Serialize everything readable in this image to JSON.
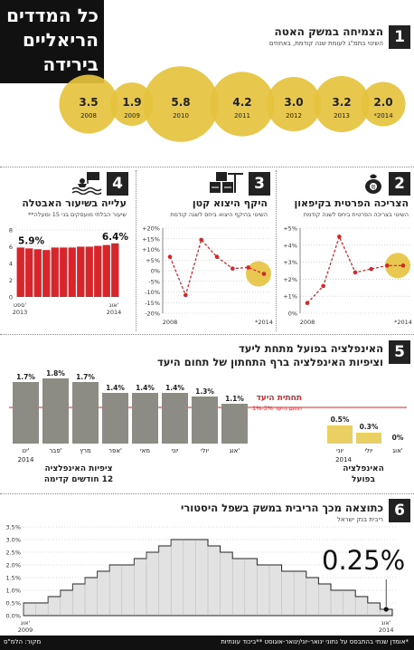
{
  "header": {
    "title_lines": [
      "כל המדדים",
      "הריאליים",
      "בירידה"
    ]
  },
  "colors": {
    "gold": "#e5c23d",
    "gold_light": "#ead062",
    "red": "#d7262b",
    "gray": "#8c8c84",
    "dark": "#222222"
  },
  "section1": {
    "number": "1",
    "title": "הצמיחה במשק האטה",
    "subtitle": "השינוי בתמ\"ג לעומת שנה קודמת, באחוזים"
  },
  "section2": {
    "number": "2",
    "icon": "money-bag-icon",
    "title": "הצריכה הפרטית בקיפאון",
    "subtitle": "השינוי בצריכה הפרטית ביחס לשנה קודמת"
  },
  "section3": {
    "number": "3",
    "icon": "crane-cargo-icon",
    "title": "היקף היצוא קטן",
    "subtitle": "השינוי בהיקף היצוא ביחס לשנה קודמת"
  },
  "section4": {
    "number": "4",
    "icon": "drowning-person-icon",
    "title": "עלייה בשיעור האבטלה",
    "subtitle": "שיעור הבלתי מועסקים בני 15 ומעלה**"
  },
  "section5": {
    "number": "5",
    "title_line1": "האינפלציה בפועל מתחת ליעד",
    "title_line2": "וציפיות האינפלציה ברף התחתון של תחום היעד",
    "target_label": "תחתית היעד",
    "target_sub": "תחום היעד 3%-1%",
    "forecast_label_1": "ציפיות האינפלציה",
    "forecast_label_2": "12 חודשים קדימה",
    "actual_label_1": "האינפלציה",
    "actual_label_2": "בפועל"
  },
  "section6": {
    "number": "6",
    "title": "כתוצאה מכך הריבית במשק בשפל היסטורי",
    "subtitle": "ריבית בנק ישראל",
    "big_value": "0.25%"
  },
  "footer": {
    "note": "*אומדן שנתי בהתבסס על נתוני ינואר-יוני/ינואר-אוגוסט **ביכוד עונתיות",
    "source": "מקור: הלמ\"ס"
  },
  "chart_data": [
    {
      "id": "gdp-growth",
      "type": "scatter",
      "title": "הצמיחה במשק האטה",
      "categories": [
        "2008",
        "2009",
        "2010",
        "2011",
        "2012",
        "2013",
        "*2014"
      ],
      "values": [
        3.5,
        1.9,
        5.8,
        4.2,
        3.0,
        3.2,
        2.0
      ],
      "value_labels": [
        "3.5",
        "1.9",
        "5.8",
        "4.2",
        "3.0",
        "3.2",
        "2.0"
      ]
    },
    {
      "id": "private-consumption",
      "type": "line",
      "x_labels": [
        "2008",
        "*2014"
      ],
      "yticks": [
        "+5%",
        "+4%",
        "+3%",
        "+2%",
        "+1%",
        "0%"
      ],
      "ylim": [
        0,
        5
      ],
      "x": [
        2008,
        2009,
        2010,
        2011,
        2012,
        2013,
        2014
      ],
      "values": [
        0.6,
        1.6,
        4.5,
        2.4,
        2.6,
        2.8,
        2.8
      ]
    },
    {
      "id": "exports",
      "type": "line",
      "x_labels": [
        "2008",
        "*2014"
      ],
      "yticks": [
        "+20%",
        "+15%",
        "+10%",
        "+5%",
        "0%",
        "-5%",
        "-10%",
        "-15%",
        "-20%"
      ],
      "ylim": [
        -20,
        20
      ],
      "x": [
        2008,
        2009,
        2010,
        2011,
        2012,
        2013,
        2014
      ],
      "values": [
        6.5,
        -11.5,
        14.5,
        6.5,
        1.0,
        1.5,
        -1.5
      ]
    },
    {
      "id": "unemployment",
      "type": "bar",
      "x_labels_left": [
        "ספט'",
        "2013"
      ],
      "x_labels_right": [
        "אוג'",
        "2014"
      ],
      "yticks": [
        "8",
        "6",
        "4",
        "2",
        "0"
      ],
      "ylim": [
        0,
        8
      ],
      "values": [
        5.9,
        5.8,
        5.7,
        5.6,
        5.9,
        5.9,
        5.9,
        6.0,
        6.0,
        6.1,
        6.2,
        6.4
      ],
      "first_label": "5.9%",
      "last_label": "6.4%"
    },
    {
      "id": "inflation-expectations",
      "type": "bar",
      "categories": [
        "ינו'",
        "פבר'",
        "מרץ",
        "אפר'",
        "מאי",
        "יוני",
        "יולי",
        "אוג'"
      ],
      "year_label": "2014",
      "values": [
        1.7,
        1.8,
        1.7,
        1.4,
        1.4,
        1.4,
        1.3,
        1.1
      ],
      "value_labels": [
        "1.7%",
        "1.8%",
        "1.7%",
        "1.4%",
        "1.4%",
        "1.4%",
        "1.3%",
        "1.1%"
      ],
      "target_floor": 1
    },
    {
      "id": "actual-inflation",
      "type": "bar",
      "categories": [
        "יוני",
        "יולי",
        "אוג'"
      ],
      "year_label": "2014",
      "values": [
        0.5,
        0.3,
        0
      ],
      "value_labels": [
        "0.5%",
        "0.3%",
        "0%"
      ]
    },
    {
      "id": "interest-rate",
      "type": "area",
      "yticks": [
        "3.5%",
        "3.0%",
        "2.5%",
        "2.0%",
        "1.5%",
        "1.0%",
        "0.5%",
        "0.0%"
      ],
      "ylim": [
        0,
        3.5
      ],
      "x_label_left": [
        "אוג'",
        "2009"
      ],
      "x_label_right": [
        "אוג'",
        "2014"
      ],
      "values": [
        0.5,
        0.5,
        0.75,
        1.0,
        1.25,
        1.5,
        1.75,
        2.0,
        2.0,
        2.25,
        2.5,
        2.75,
        3.0,
        3.0,
        3.0,
        2.75,
        2.5,
        2.25,
        2.25,
        2.0,
        2.0,
        1.75,
        1.75,
        1.5,
        1.25,
        1.0,
        1.0,
        0.75,
        0.5,
        0.25
      ]
    }
  ]
}
